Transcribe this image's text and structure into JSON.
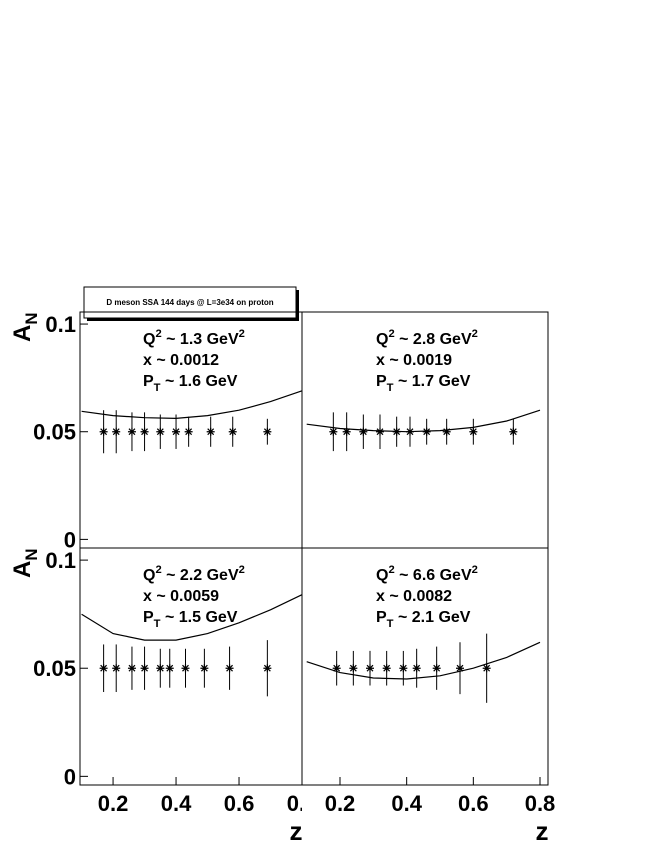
{
  "chart_data": [
    {
      "type": "scatter",
      "title": "D meson SSA 144 days @ L=3e34 on proton",
      "y_label": [
        {
          "text": "A"
        },
        {
          "sub": "N"
        }
      ],
      "annotation": [
        [
          {
            "text": "Q"
          },
          {
            "sup": "2"
          },
          {
            "text": " ~ 1.3 GeV"
          },
          {
            "sup": "2"
          }
        ],
        [
          {
            "text": "x ~ 0.0012"
          }
        ],
        [
          {
            "text": "P"
          },
          {
            "sub": "T"
          },
          {
            "text": " ~ 1.6 GeV"
          }
        ]
      ],
      "xlim": [
        0.095,
        0.8
      ],
      "ylim": [
        -0.004,
        0.1056
      ],
      "yticks": [
        0,
        0.05,
        0.1
      ],
      "points": {
        "x": [
          0.17,
          0.21,
          0.26,
          0.3,
          0.35,
          0.4,
          0.44,
          0.51,
          0.58,
          0.69
        ],
        "values": [
          0.05,
          0.05,
          0.05,
          0.05,
          0.05,
          0.05,
          0.05,
          0.05,
          0.05,
          0.05
        ],
        "errors": [
          0.01,
          0.01,
          0.009,
          0.009,
          0.008,
          0.008,
          0.007,
          0.007,
          0.007,
          0.006
        ]
      },
      "curve": {
        "x": [
          0.1,
          0.2,
          0.3,
          0.4,
          0.5,
          0.6,
          0.7,
          0.8
        ],
        "values": [
          0.0595,
          0.0575,
          0.0565,
          0.0562,
          0.0575,
          0.06,
          0.064,
          0.069
        ]
      }
    },
    {
      "type": "scatter",
      "annotation": [
        [
          {
            "text": "Q"
          },
          {
            "sup": "2"
          },
          {
            "text": " ~ 2.8 GeV"
          },
          {
            "sup": "2"
          }
        ],
        [
          {
            "text": "x ~ 0.0019"
          }
        ],
        [
          {
            "text": "P"
          },
          {
            "sub": "T"
          },
          {
            "text": " ~ 1.7 GeV"
          }
        ]
      ],
      "xlim": [
        0.086,
        0.824
      ],
      "ylim": [
        -0.004,
        0.1056
      ],
      "points": {
        "x": [
          0.18,
          0.22,
          0.27,
          0.32,
          0.37,
          0.41,
          0.46,
          0.52,
          0.6,
          0.72
        ],
        "values": [
          0.05,
          0.05,
          0.05,
          0.05,
          0.05,
          0.05,
          0.05,
          0.05,
          0.05,
          0.05
        ],
        "errors": [
          0.009,
          0.009,
          0.008,
          0.008,
          0.007,
          0.007,
          0.006,
          0.006,
          0.006,
          0.006
        ]
      },
      "curve": {
        "x": [
          0.1,
          0.2,
          0.3,
          0.4,
          0.5,
          0.6,
          0.7,
          0.8
        ],
        "values": [
          0.0535,
          0.0515,
          0.0505,
          0.05,
          0.0505,
          0.052,
          0.055,
          0.06
        ]
      }
    },
    {
      "type": "scatter",
      "y_label": [
        {
          "text": "A"
        },
        {
          "sub": "N"
        }
      ],
      "x_label": "z",
      "annotation": [
        [
          {
            "text": "Q"
          },
          {
            "sup": "2"
          },
          {
            "text": " ~ 2.2 GeV"
          },
          {
            "sup": "2"
          }
        ],
        [
          {
            "text": "x ~ 0.0059"
          }
        ],
        [
          {
            "text": "P"
          },
          {
            "sub": "T"
          },
          {
            "text": " ~ 1.5 GeV"
          }
        ]
      ],
      "xlim": [
        0.095,
        0.8
      ],
      "ylim": [
        -0.004,
        0.1056
      ],
      "yticks": [
        0,
        0.05,
        0.1
      ],
      "xticks": [
        0.2,
        0.4,
        0.6,
        0.8
      ],
      "points": {
        "x": [
          0.17,
          0.21,
          0.26,
          0.3,
          0.35,
          0.38,
          0.43,
          0.49,
          0.57,
          0.69
        ],
        "values": [
          0.05,
          0.05,
          0.05,
          0.05,
          0.05,
          0.05,
          0.05,
          0.05,
          0.05,
          0.05
        ],
        "errors": [
          0.011,
          0.011,
          0.01,
          0.01,
          0.009,
          0.009,
          0.009,
          0.009,
          0.01,
          0.013
        ]
      },
      "curve": {
        "x": [
          0.1,
          0.2,
          0.3,
          0.4,
          0.5,
          0.6,
          0.7,
          0.8
        ],
        "values": [
          0.075,
          0.066,
          0.063,
          0.063,
          0.066,
          0.071,
          0.077,
          0.084
        ]
      }
    },
    {
      "type": "scatter",
      "x_label": "z",
      "annotation": [
        [
          {
            "text": "Q"
          },
          {
            "sup": "2"
          },
          {
            "text": " ~ 6.6 GeV"
          },
          {
            "sup": "2"
          }
        ],
        [
          {
            "text": "x ~ 0.0082"
          }
        ],
        [
          {
            "text": "P"
          },
          {
            "sub": "T"
          },
          {
            "text": " ~ 2.1 GeV"
          }
        ]
      ],
      "xlim": [
        0.086,
        0.824
      ],
      "ylim": [
        -0.004,
        0.1056
      ],
      "xticks": [
        0.2,
        0.4,
        0.6,
        0.8
      ],
      "points": {
        "x": [
          0.19,
          0.24,
          0.29,
          0.34,
          0.39,
          0.43,
          0.49,
          0.56,
          0.64
        ],
        "values": [
          0.05,
          0.05,
          0.05,
          0.05,
          0.05,
          0.05,
          0.05,
          0.05,
          0.05
        ],
        "errors": [
          0.008,
          0.008,
          0.008,
          0.008,
          0.008,
          0.009,
          0.01,
          0.012,
          0.016
        ]
      },
      "curve": {
        "x": [
          0.1,
          0.2,
          0.3,
          0.4,
          0.5,
          0.6,
          0.7,
          0.8
        ],
        "values": [
          0.053,
          0.048,
          0.0455,
          0.045,
          0.0465,
          0.05,
          0.055,
          0.062
        ]
      }
    }
  ]
}
